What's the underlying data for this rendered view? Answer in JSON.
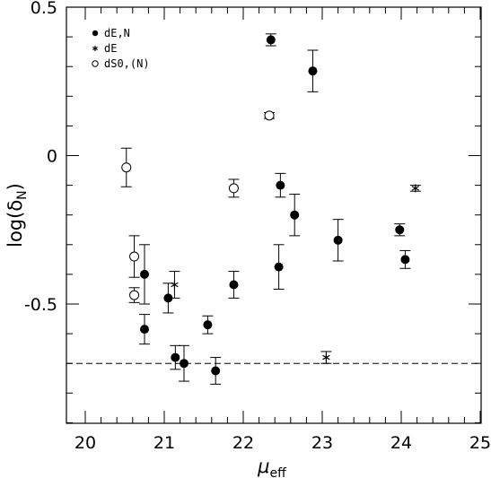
{
  "chart_data": {
    "type": "scatter",
    "xlabel_symbol": "μ",
    "xlabel_sub": "eff",
    "ylabel_prefix": "log(δ",
    "ylabel_sub": "N",
    "ylabel_suffix": ")",
    "xlim": [
      20,
      25
    ],
    "ylim": [
      -0.9,
      0.5
    ],
    "xticks": [
      20,
      21,
      22,
      23,
      24,
      25
    ],
    "yticks": [
      -0.5,
      0,
      0.5
    ],
    "xtick_labels": [
      "20",
      "21",
      "22",
      "23",
      "24",
      "25"
    ],
    "ytick_labels": [
      "-0.5",
      "0",
      "0.5"
    ],
    "grid": false,
    "legend_position": "top-left",
    "reference_line": {
      "y": -0.7,
      "style": "dashed"
    },
    "series": [
      {
        "name": "dE,N",
        "marker": "filled-circle",
        "points": [
          {
            "x": 22.35,
            "y": 0.39,
            "err": 0.02
          },
          {
            "x": 22.88,
            "y": 0.285,
            "err": 0.07
          },
          {
            "x": 22.47,
            "y": -0.1,
            "err": 0.04
          },
          {
            "x": 22.65,
            "y": -0.2,
            "err": 0.07
          },
          {
            "x": 23.2,
            "y": -0.285,
            "err": 0.07
          },
          {
            "x": 23.98,
            "y": -0.25,
            "err": 0.02
          },
          {
            "x": 24.05,
            "y": -0.35,
            "err": 0.03
          },
          {
            "x": 22.45,
            "y": -0.375,
            "err": 0.075
          },
          {
            "x": 21.88,
            "y": -0.435,
            "err": 0.045
          },
          {
            "x": 20.75,
            "y": -0.4,
            "err": 0.1
          },
          {
            "x": 21.05,
            "y": -0.48,
            "err": 0.05
          },
          {
            "x": 20.75,
            "y": -0.585,
            "err": 0.05
          },
          {
            "x": 21.55,
            "y": -0.57,
            "err": 0.03
          },
          {
            "x": 21.14,
            "y": -0.68,
            "err": 0.04
          },
          {
            "x": 21.25,
            "y": -0.7,
            "err": 0.06
          },
          {
            "x": 21.65,
            "y": -0.725,
            "err": 0.045
          }
        ]
      },
      {
        "name": "dE",
        "marker": "asterisk",
        "points": [
          {
            "x": 21.13,
            "y": -0.435,
            "err": 0.045
          },
          {
            "x": 23.05,
            "y": -0.68,
            "err": 0.02
          },
          {
            "x": 24.18,
            "y": -0.11,
            "err": 0.01
          }
        ]
      },
      {
        "name": "dS0,(N)",
        "marker": "open-circle",
        "points": [
          {
            "x": 20.52,
            "y": -0.04,
            "err": 0.065
          },
          {
            "x": 20.62,
            "y": -0.34,
            "err": 0.07
          },
          {
            "x": 20.62,
            "y": -0.47,
            "err": 0.025
          },
          {
            "x": 21.88,
            "y": -0.11,
            "err": 0.03
          },
          {
            "x": 22.33,
            "y": 0.135,
            "err": 0.01
          }
        ]
      }
    ]
  }
}
